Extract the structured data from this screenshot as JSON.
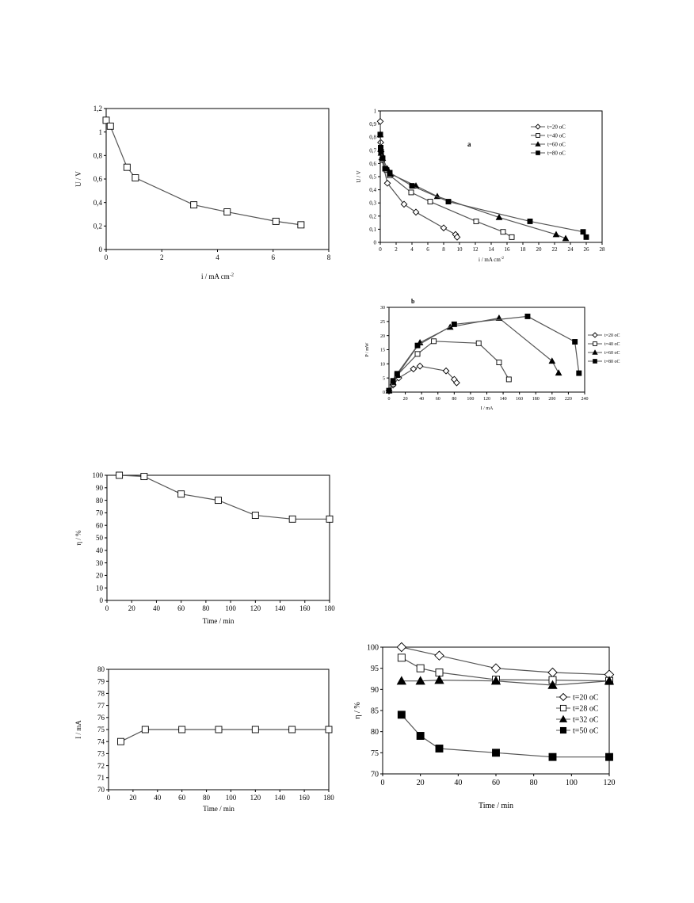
{
  "charts": [
    {
      "id": "c1",
      "type": "line",
      "xlabel": "i / mA cm",
      "xlabel_sup": "-2",
      "ylabel": "U / V",
      "xlim": [
        0,
        8
      ],
      "ylim": [
        0,
        1.2
      ],
      "xticks": [
        0,
        2,
        4,
        6,
        8
      ],
      "xtick_labels": [
        "0",
        "2",
        "4",
        "6",
        "8"
      ],
      "yticks": [
        0,
        0.2,
        0.4,
        0.6,
        0.8,
        1.0,
        1.2
      ],
      "ytick_labels": [
        "0",
        "0,2",
        "0,4",
        "0,6",
        "0,8",
        "1",
        "1,2"
      ],
      "series": [
        {
          "marker": "open-square",
          "x": [
            0,
            0.15,
            0.75,
            1.05,
            3.15,
            4.35,
            6.1,
            7.0
          ],
          "y": [
            1.1,
            1.05,
            0.7,
            0.61,
            0.38,
            0.32,
            0.24,
            0.21
          ]
        }
      ]
    },
    {
      "id": "c2",
      "type": "line",
      "annotation": "a",
      "xlabel": "i / mA cm",
      "xlabel_sup": "-2",
      "ylabel": "U / V",
      "xlim": [
        0,
        28
      ],
      "ylim": [
        0,
        1
      ],
      "xticks": [
        0,
        2,
        4,
        6,
        8,
        10,
        12,
        14,
        16,
        18,
        20,
        22,
        24,
        26,
        28
      ],
      "xtick_labels": [
        "0",
        "2",
        "4",
        "6",
        "8",
        "10",
        "12",
        "14",
        "16",
        "18",
        "20",
        "22",
        "24",
        "26",
        "28"
      ],
      "yticks": [
        0,
        0.1,
        0.2,
        0.3,
        0.4,
        0.5,
        0.6,
        0.7,
        0.8,
        0.9,
        1.0
      ],
      "ytick_labels": [
        "0",
        "0,1",
        "0,2",
        "0,3",
        "0,4",
        "0,5",
        "0,6",
        "0,7",
        "0,8",
        "0,9",
        "1"
      ],
      "legend": [
        "t=20 oC",
        "t=40 oC",
        "t=60 oC",
        "t=80 oC"
      ],
      "series": [
        {
          "name": "t=20 oC",
          "marker": "open-diamond",
          "x": [
            0,
            0.05,
            0.1,
            0.2,
            0.9,
            3.0,
            4.5,
            8.0,
            9.5,
            9.7
          ],
          "y": [
            0.92,
            0.76,
            0.69,
            0.63,
            0.45,
            0.29,
            0.23,
            0.11,
            0.06,
            0.04
          ]
        },
        {
          "name": "t=40 oC",
          "marker": "open-square",
          "x": [
            0,
            0.05,
            0.1,
            0.25,
            0.8,
            1.2,
            3.9,
            6.3,
            12.1,
            15.5,
            16.6
          ],
          "y": [
            0.82,
            0.72,
            0.68,
            0.63,
            0.55,
            0.51,
            0.38,
            0.31,
            0.16,
            0.08,
            0.04
          ]
        },
        {
          "name": "t=60 oC",
          "marker": "filled-triangle",
          "x": [
            0,
            0.05,
            0.1,
            0.3,
            0.9,
            1.3,
            4.5,
            7.2,
            15.0,
            22.2,
            23.4
          ],
          "y": [
            0.82,
            0.71,
            0.68,
            0.64,
            0.56,
            0.52,
            0.43,
            0.35,
            0.19,
            0.06,
            0.03
          ]
        },
        {
          "name": "t=80 oC",
          "marker": "filled-square",
          "x": [
            0,
            0.05,
            0.1,
            0.3,
            0.6,
            1.2,
            4.0,
            8.6,
            18.9,
            25.6,
            26.0
          ],
          "y": [
            0.82,
            0.72,
            0.69,
            0.64,
            0.56,
            0.53,
            0.43,
            0.31,
            0.16,
            0.08,
            0.04
          ]
        }
      ]
    },
    {
      "id": "c3",
      "type": "line",
      "annotation": "b",
      "xlabel": "I / mA",
      "ylabel": "P / mW",
      "xlim": [
        0,
        240
      ],
      "ylim": [
        0,
        30
      ],
      "xticks": [
        0,
        20,
        40,
        60,
        80,
        100,
        120,
        140,
        160,
        180,
        200,
        220,
        240
      ],
      "xtick_labels": [
        "0",
        "20",
        "40",
        "60",
        "80",
        "100",
        "120",
        "140",
        "160",
        "180",
        "200",
        "220",
        "240"
      ],
      "yticks": [
        0,
        5,
        10,
        15,
        20,
        25,
        30
      ],
      "ytick_labels": [
        "0",
        "5",
        "10",
        "15",
        "20",
        "25",
        "30"
      ],
      "legend": [
        "t=20 oC",
        "t=40 oC",
        "t=60 oC",
        "t=80 oC"
      ],
      "series": [
        {
          "name": "t=20 oC",
          "marker": "open-diamond",
          "x": [
            0,
            5,
            12,
            30,
            38,
            70,
            80,
            83
          ],
          "y": [
            0.5,
            2.5,
            5,
            8.2,
            9.2,
            7.5,
            4.5,
            3.3
          ]
        },
        {
          "name": "t=40 oC",
          "marker": "open-square",
          "x": [
            0,
            5,
            10,
            35,
            55,
            110,
            135,
            147
          ],
          "y": [
            0.5,
            3,
            6,
            13.5,
            18,
            17.3,
            10.5,
            4.5
          ]
        },
        {
          "name": "t=60 oC",
          "marker": "filled-triangle",
          "x": [
            0,
            5,
            10,
            38,
            75,
            135,
            200,
            208
          ],
          "y": [
            0.5,
            3.5,
            6,
            17.5,
            23,
            26.2,
            11,
            6.8
          ]
        },
        {
          "name": "t=80 oC",
          "marker": "filled-square",
          "x": [
            0,
            5,
            10,
            35,
            80,
            170,
            228,
            233
          ],
          "y": [
            0.5,
            4,
            6.5,
            16.5,
            24,
            26.8,
            17.8,
            6.7
          ]
        }
      ]
    },
    {
      "id": "c4",
      "type": "line",
      "xlabel": "Time / min",
      "ylabel": "η / %",
      "xlim": [
        0,
        180
      ],
      "ylim": [
        0,
        100
      ],
      "xticks": [
        0,
        20,
        40,
        60,
        80,
        100,
        120,
        140,
        160,
        180
      ],
      "xtick_labels": [
        "0",
        "20",
        "40",
        "60",
        "80",
        "100",
        "120",
        "140",
        "160",
        "180"
      ],
      "yticks": [
        0,
        10,
        20,
        30,
        40,
        50,
        60,
        70,
        80,
        90,
        100
      ],
      "ytick_labels": [
        "0",
        "10",
        "20",
        "30",
        "40",
        "50",
        "60",
        "70",
        "80",
        "90",
        "100"
      ],
      "series": [
        {
          "marker": "open-square",
          "x": [
            10,
            30,
            60,
            90,
            120,
            150,
            180
          ],
          "y": [
            100,
            99,
            85,
            80,
            68,
            65,
            65
          ]
        }
      ]
    },
    {
      "id": "c5",
      "type": "line",
      "xlabel": "Time / min",
      "ylabel": "I / mA",
      "xlim": [
        0,
        180
      ],
      "ylim": [
        70,
        80
      ],
      "xticks": [
        0,
        20,
        40,
        60,
        80,
        100,
        120,
        140,
        160,
        180
      ],
      "xtick_labels": [
        "0",
        "20",
        "40",
        "60",
        "80",
        "100",
        "120",
        "140",
        "160",
        "180"
      ],
      "yticks": [
        70,
        71,
        72,
        73,
        74,
        75,
        76,
        77,
        78,
        79,
        80
      ],
      "ytick_labels": [
        "70",
        "71",
        "72",
        "73",
        "74",
        "75",
        "76",
        "77",
        "78",
        "79",
        "80"
      ],
      "series": [
        {
          "marker": "open-square",
          "x": [
            10,
            30,
            60,
            90,
            120,
            150,
            180
          ],
          "y": [
            74,
            75,
            75,
            75,
            75,
            75,
            75
          ]
        }
      ]
    },
    {
      "id": "c6",
      "type": "line",
      "xlabel": "Time / min",
      "ylabel": "η / %",
      "xlim": [
        0,
        120
      ],
      "ylim": [
        70,
        100
      ],
      "xticks": [
        0,
        20,
        40,
        60,
        80,
        100,
        120
      ],
      "xtick_labels": [
        "0",
        "20",
        "40",
        "60",
        "80",
        "100",
        "120"
      ],
      "yticks": [
        70,
        75,
        80,
        85,
        90,
        95,
        100
      ],
      "ytick_labels": [
        "70",
        "75",
        "80",
        "85",
        "90",
        "95",
        "100"
      ],
      "legend": [
        "t=20 oC",
        "t=28 oC",
        "t=32 oC",
        "t=50 oC"
      ],
      "series": [
        {
          "name": "t=20 oC",
          "marker": "open-diamond",
          "x": [
            10,
            30,
            60,
            90,
            120
          ],
          "y": [
            100,
            98,
            95,
            94,
            93.5
          ]
        },
        {
          "name": "t=28 oC",
          "marker": "open-square",
          "x": [
            10,
            20,
            30,
            60,
            90,
            120
          ],
          "y": [
            97.5,
            95,
            94,
            92.3,
            92.2,
            92
          ]
        },
        {
          "name": "t=32 oC",
          "marker": "filled-triangle",
          "x": [
            10,
            20,
            30,
            60,
            90,
            120
          ],
          "y": [
            92,
            92,
            92.2,
            92,
            91,
            92
          ]
        },
        {
          "name": "t=50 oC",
          "marker": "filled-square",
          "x": [
            10,
            20,
            30,
            60,
            90,
            120
          ],
          "y": [
            84,
            79,
            76,
            75,
            74,
            74
          ]
        }
      ]
    }
  ]
}
